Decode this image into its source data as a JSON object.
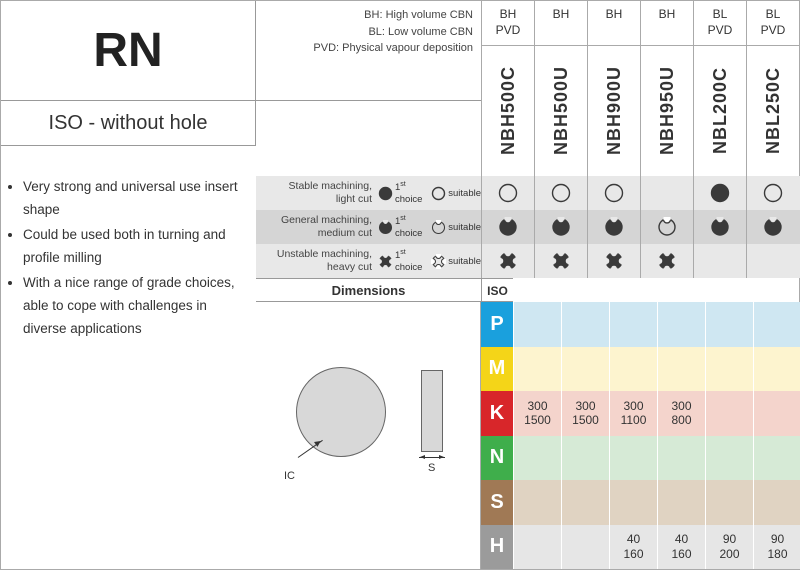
{
  "header": {
    "code": "RN",
    "subtitle": "ISO - without hole",
    "legend": [
      "BH: High volume CBN",
      "BL: Low volume CBN",
      "PVD: Physical vapour deposition"
    ]
  },
  "grades": [
    {
      "top1": "BH",
      "top2": "PVD",
      "name": "NBH500C"
    },
    {
      "top1": "BH",
      "top2": "",
      "name": "NBH500U"
    },
    {
      "top1": "BH",
      "top2": "",
      "name": "NBH900U"
    },
    {
      "top1": "BH",
      "top2": "",
      "name": "NBH950U"
    },
    {
      "top1": "BL",
      "top2": "PVD",
      "name": "NBL200C"
    },
    {
      "top1": "BL",
      "top2": "PVD",
      "name": "NBL250C"
    }
  ],
  "bullets": [
    "Very strong and universal use insert shape",
    "Could be used both in turning and profile milling",
    "With a nice range of grade choices, able to cope with challenges in diverse applications"
  ],
  "suitability": {
    "rows": [
      {
        "label1": "Stable machining,",
        "label2": "light cut",
        "icon": "circle",
        "bg": "#e8e8e8",
        "cells": [
          "s",
          "s",
          "s",
          "",
          "f",
          "s"
        ]
      },
      {
        "label1": "General machining,",
        "label2": "medium cut",
        "icon": "notch",
        "bg": "#d5d5d5",
        "cells": [
          "f",
          "f",
          "f",
          "s",
          "f",
          "f"
        ]
      },
      {
        "label1": "Unstable machining,",
        "label2": "heavy cut",
        "icon": "cross",
        "bg": "#e8e8e8",
        "cells": [
          "f",
          "f",
          "f",
          "f",
          "",
          ""
        ]
      }
    ],
    "choice_label_html": "1<sup>st</sup> choice",
    "suitable_label": "suitable"
  },
  "dimensions": {
    "header": "Dimensions",
    "iso_header": "ISO",
    "ic_label": "IC",
    "s_label": "S"
  },
  "iso_rows": [
    {
      "letter": "P",
      "bg": "#cfe7f2",
      "letterbg": "#1aa0dd",
      "cells": [
        "",
        "",
        "",
        "",
        "",
        ""
      ]
    },
    {
      "letter": "M",
      "bg": "#fdf4cf",
      "letterbg": "#f4d518",
      "cells": [
        "",
        "",
        "",
        "",
        "",
        ""
      ]
    },
    {
      "letter": "K",
      "bg": "#f4d4cc",
      "letterbg": "#d8262a",
      "cells": [
        "300\n1500",
        "300\n1500",
        "300\n1100",
        "300\n800",
        "",
        ""
      ]
    },
    {
      "letter": "N",
      "bg": "#d6ead6",
      "letterbg": "#3fae4b",
      "cells": [
        "",
        "",
        "",
        "",
        "",
        ""
      ]
    },
    {
      "letter": "S",
      "bg": "#e0d3c2",
      "letterbg": "#a07955",
      "cells": [
        "",
        "",
        "",
        "",
        "",
        ""
      ]
    },
    {
      "letter": "H",
      "bg": "#e6e6e6",
      "letterbg": "#9b9b9b",
      "cells": [
        "",
        "",
        "40\n160",
        "40\n160",
        "90\n200",
        "90\n180"
      ]
    }
  ],
  "colors": {
    "icon_dark": "#3a3a3a"
  }
}
